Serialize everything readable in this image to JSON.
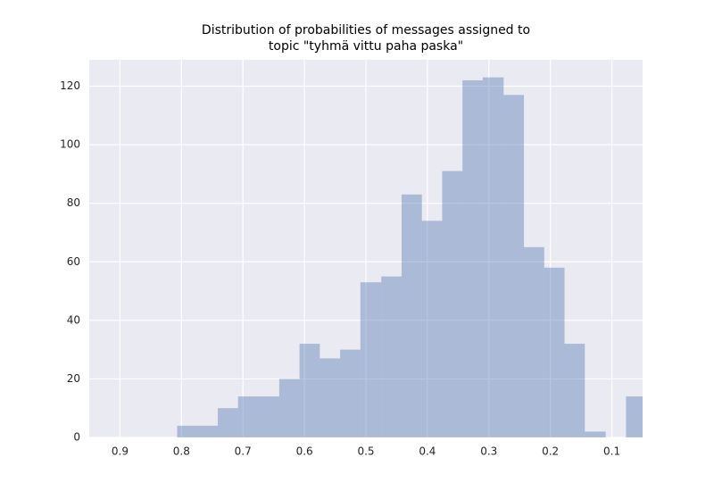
{
  "chart_data": {
    "type": "histogram",
    "title": [
      "Distribution of probabilities of messages assigned to",
      "topic \"tyhmä vittu paha paska\""
    ],
    "bins": [
      0.044,
      0.077,
      0.11,
      0.144,
      0.177,
      0.21,
      0.243,
      0.276,
      0.31,
      0.343,
      0.376,
      0.409,
      0.442,
      0.475,
      0.509,
      0.542,
      0.575,
      0.608,
      0.641,
      0.674,
      0.708,
      0.741,
      0.774,
      0.807
    ],
    "values": [
      14,
      0,
      2,
      32,
      58,
      65,
      117,
      123,
      122,
      91,
      74,
      83,
      55,
      53,
      30,
      27,
      32,
      20,
      14,
      14,
      10,
      4,
      4
    ],
    "color": "#4c72b0",
    "alpha": 0.4,
    "xlim": [
      0.95,
      0.05
    ],
    "xticks": [
      0.9,
      0.8,
      0.7,
      0.6,
      0.5,
      0.4,
      0.3,
      0.2,
      0.1
    ],
    "ylim": [
      0,
      129
    ],
    "yticks": [
      0,
      20,
      40,
      60,
      80,
      100,
      120
    ],
    "grid": true
  }
}
